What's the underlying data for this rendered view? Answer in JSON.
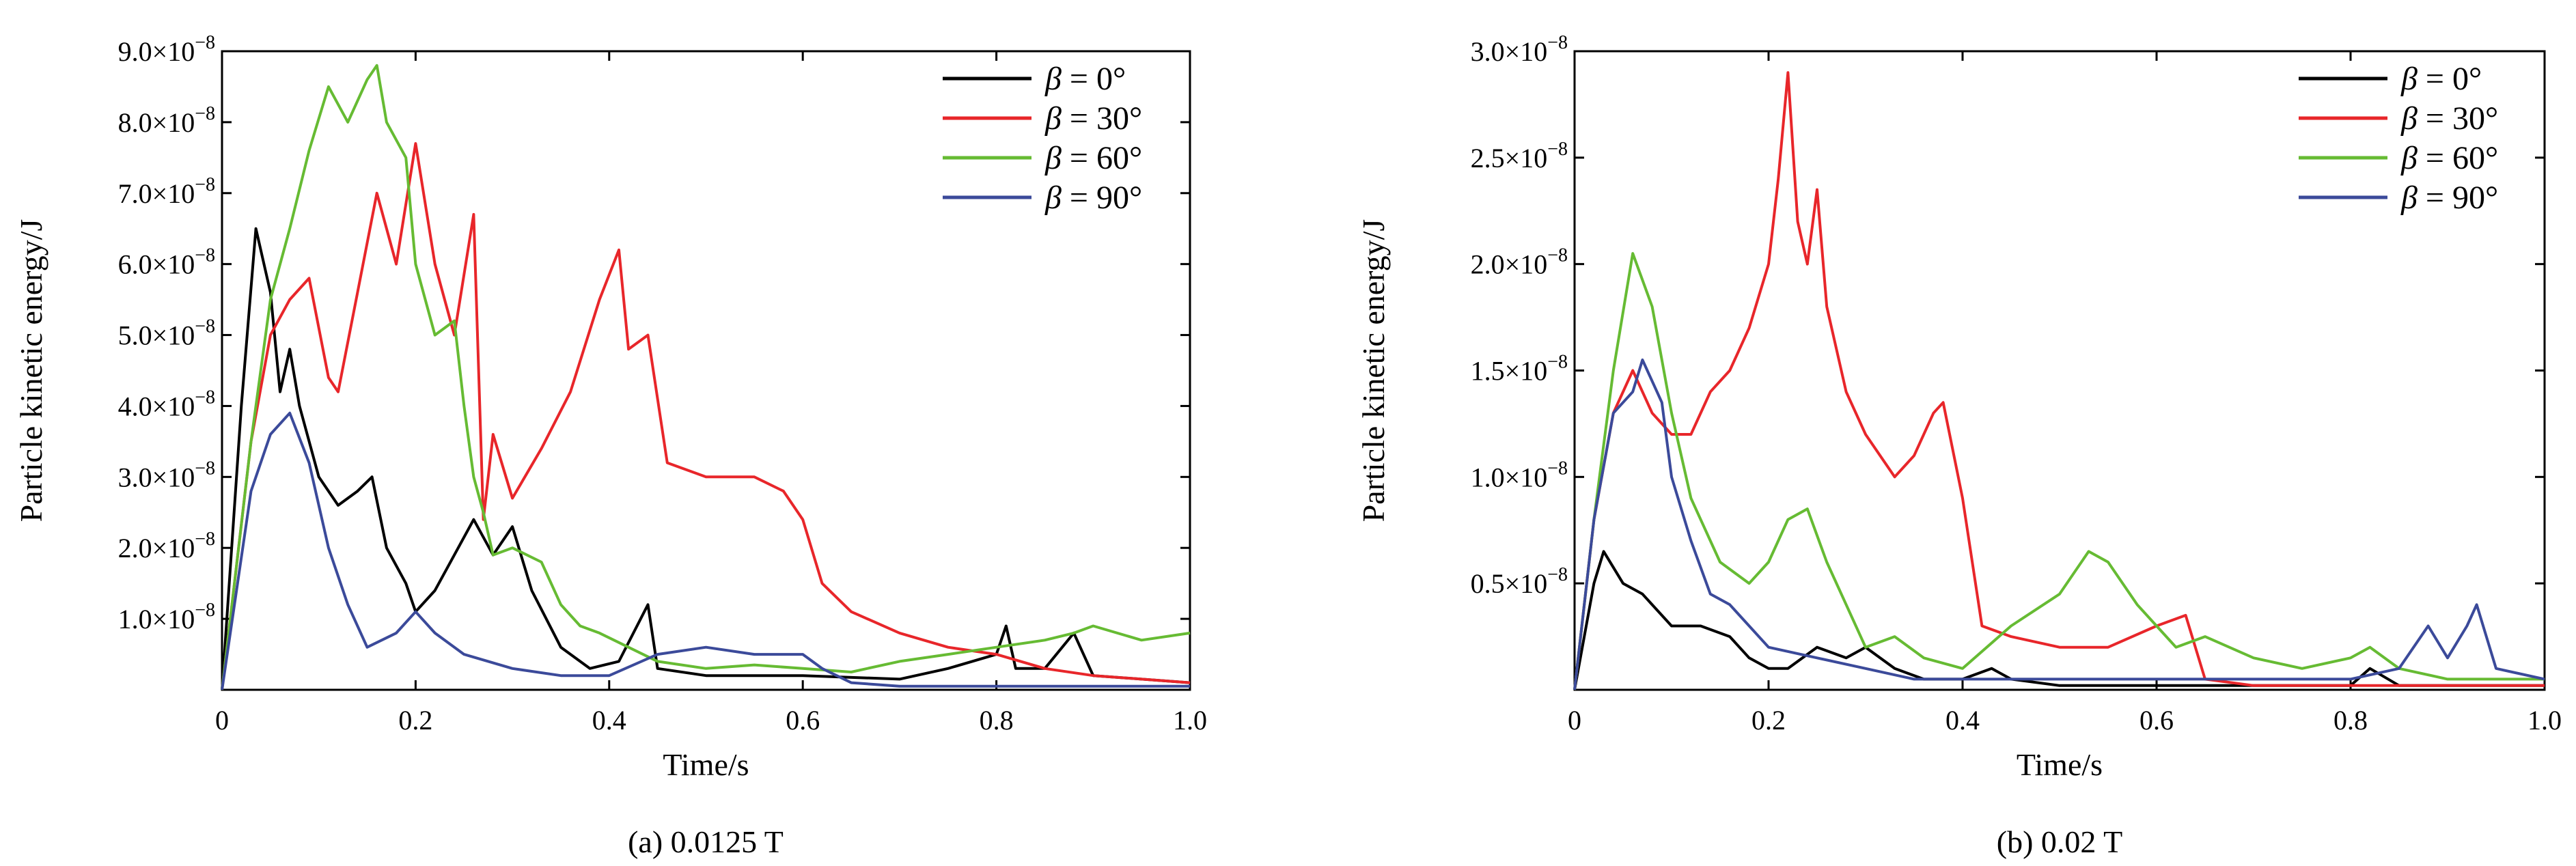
{
  "chart_data": [
    {
      "type": "line",
      "caption": "(a) 0.0125 T",
      "xlabel": "Time/s",
      "ylabel": "Particle kinetic energy/J",
      "xlim": [
        0,
        1.0
      ],
      "ylim": [
        0,
        9e-08
      ],
      "xticks": [
        "0",
        "0.2",
        "0.4",
        "0.6",
        "0.8",
        "1.0"
      ],
      "xtick_values": [
        0,
        0.2,
        0.4,
        0.6,
        0.8,
        1.0
      ],
      "yticks": [
        {
          "mant": "1.0",
          "value": 1e-08
        },
        {
          "mant": "2.0",
          "value": 2e-08
        },
        {
          "mant": "3.0",
          "value": 3e-08
        },
        {
          "mant": "4.0",
          "value": 4e-08
        },
        {
          "mant": "5.0",
          "value": 5e-08
        },
        {
          "mant": "6.0",
          "value": 6e-08
        },
        {
          "mant": "7.0",
          "value": 7e-08
        },
        {
          "mant": "8.0",
          "value": 8e-08
        },
        {
          "mant": "9.0",
          "value": 9e-08
        }
      ],
      "ytick_suffix": "×10",
      "ytick_exp": "−8",
      "legend_position": "top-right",
      "series": [
        {
          "name_sym": "β",
          "name_rest": " = 0°",
          "color": "#000000",
          "x": [
            0,
            0.02,
            0.035,
            0.05,
            0.06,
            0.07,
            0.08,
            0.1,
            0.12,
            0.14,
            0.155,
            0.17,
            0.19,
            0.2,
            0.22,
            0.24,
            0.26,
            0.28,
            0.3,
            0.32,
            0.35,
            0.38,
            0.41,
            0.44,
            0.45,
            0.5,
            0.6,
            0.7,
            0.75,
            0.8,
            0.81,
            0.82,
            0.85,
            0.88,
            0.9,
            1.0
          ],
          "y": [
            0,
            4e-08,
            6.5e-08,
            5.6e-08,
            4.2e-08,
            4.8e-08,
            4e-08,
            3e-08,
            2.6e-08,
            2.8e-08,
            3e-08,
            2e-08,
            1.5e-08,
            1.1e-08,
            1.4e-08,
            1.9e-08,
            2.4e-08,
            1.9e-08,
            2.3e-08,
            1.4e-08,
            6e-09,
            3e-09,
            4e-09,
            1.2e-08,
            3e-09,
            2e-09,
            2e-09,
            1.5e-09,
            3e-09,
            5e-09,
            9e-09,
            3e-09,
            3e-09,
            8e-09,
            2e-09,
            1e-09
          ]
        },
        {
          "name_sym": "β",
          "name_rest": " = 30°",
          "color": "#e8262a",
          "x": [
            0,
            0.03,
            0.05,
            0.07,
            0.09,
            0.11,
            0.12,
            0.14,
            0.16,
            0.18,
            0.2,
            0.22,
            0.24,
            0.26,
            0.27,
            0.28,
            0.3,
            0.33,
            0.36,
            0.39,
            0.41,
            0.42,
            0.44,
            0.46,
            0.5,
            0.55,
            0.58,
            0.6,
            0.62,
            0.65,
            0.7,
            0.75,
            0.8,
            0.85,
            0.9,
            1.0
          ],
          "y": [
            0,
            3.5e-08,
            5e-08,
            5.5e-08,
            5.8e-08,
            4.4e-08,
            4.2e-08,
            5.6e-08,
            7e-08,
            6e-08,
            7.7e-08,
            6e-08,
            5e-08,
            6.7e-08,
            2.4e-08,
            3.6e-08,
            2.7e-08,
            3.4e-08,
            4.2e-08,
            5.5e-08,
            6.2e-08,
            4.8e-08,
            5e-08,
            3.2e-08,
            3e-08,
            3e-08,
            2.8e-08,
            2.4e-08,
            1.5e-08,
            1.1e-08,
            8e-09,
            6e-09,
            5e-09,
            3e-09,
            2e-09,
            1e-09
          ]
        },
        {
          "name_sym": "β",
          "name_rest": " = 60°",
          "color": "#66bb33",
          "x": [
            0,
            0.03,
            0.05,
            0.07,
            0.09,
            0.11,
            0.13,
            0.15,
            0.16,
            0.17,
            0.19,
            0.2,
            0.22,
            0.24,
            0.25,
            0.26,
            0.27,
            0.28,
            0.3,
            0.33,
            0.35,
            0.37,
            0.39,
            0.42,
            0.45,
            0.5,
            0.55,
            0.6,
            0.65,
            0.7,
            0.75,
            0.8,
            0.85,
            0.88,
            0.9,
            0.95,
            1.0
          ],
          "y": [
            0,
            3.5e-08,
            5.5e-08,
            6.5e-08,
            7.6e-08,
            8.5e-08,
            8e-08,
            8.6e-08,
            8.8e-08,
            8e-08,
            7.5e-08,
            6e-08,
            5e-08,
            5.2e-08,
            4e-08,
            3e-08,
            2.5e-08,
            1.9e-08,
            2e-08,
            1.8e-08,
            1.2e-08,
            9e-09,
            8e-09,
            6e-09,
            4e-09,
            3e-09,
            3.5e-09,
            3e-09,
            2.5e-09,
            4e-09,
            5e-09,
            6e-09,
            7e-09,
            8e-09,
            9e-09,
            7e-09,
            8e-09
          ]
        },
        {
          "name_sym": "β",
          "name_rest": " = 90°",
          "color": "#3b4a9a",
          "x": [
            0,
            0.03,
            0.05,
            0.07,
            0.09,
            0.11,
            0.13,
            0.15,
            0.18,
            0.2,
            0.22,
            0.25,
            0.3,
            0.35,
            0.4,
            0.45,
            0.5,
            0.55,
            0.6,
            0.62,
            0.65,
            0.7,
            0.8,
            0.9,
            1.0
          ],
          "y": [
            0,
            2.8e-08,
            3.6e-08,
            3.9e-08,
            3.2e-08,
            2e-08,
            1.2e-08,
            6e-09,
            8e-09,
            1.1e-08,
            8e-09,
            5e-09,
            3e-09,
            2e-09,
            2e-09,
            5e-09,
            6e-09,
            5e-09,
            5e-09,
            3e-09,
            1e-09,
            5e-10,
            5e-10,
            5e-10,
            5e-10
          ]
        }
      ]
    },
    {
      "type": "line",
      "caption": "(b) 0.02 T",
      "xlabel": "Time/s",
      "ylabel": "Particle kinetic energy/J",
      "xlim": [
        0,
        1.0
      ],
      "ylim": [
        0,
        3e-08
      ],
      "xticks": [
        "0",
        "0.2",
        "0.4",
        "0.6",
        "0.8",
        "1.0"
      ],
      "xtick_values": [
        0,
        0.2,
        0.4,
        0.6,
        0.8,
        1.0
      ],
      "yticks": [
        {
          "mant": "0.5",
          "value": 5e-09
        },
        {
          "mant": "1.0",
          "value": 1e-08
        },
        {
          "mant": "1.5",
          "value": 1.5e-08
        },
        {
          "mant": "2.0",
          "value": 2e-08
        },
        {
          "mant": "2.5",
          "value": 2.5e-08
        },
        {
          "mant": "3.0",
          "value": 3e-08
        }
      ],
      "ytick_suffix": "×10",
      "ytick_exp": "−8",
      "legend_position": "top-right",
      "series": [
        {
          "name_sym": "β",
          "name_rest": " = 0°",
          "color": "#000000",
          "x": [
            0,
            0.02,
            0.03,
            0.05,
            0.07,
            0.1,
            0.13,
            0.16,
            0.18,
            0.2,
            0.22,
            0.25,
            0.28,
            0.3,
            0.33,
            0.36,
            0.4,
            0.43,
            0.45,
            0.5,
            0.6,
            0.7,
            0.8,
            0.82,
            0.85,
            0.9,
            1.0
          ],
          "y": [
            0,
            5e-09,
            6.5e-09,
            5e-09,
            4.5e-09,
            3e-09,
            3e-09,
            2.5e-09,
            1.5e-09,
            1e-09,
            1e-09,
            2e-09,
            1.5e-09,
            2e-09,
            1e-09,
            5e-10,
            5e-10,
            1e-09,
            5e-10,
            2e-10,
            2e-10,
            2e-10,
            2e-10,
            1e-09,
            2e-10,
            2e-10,
            2e-10
          ]
        },
        {
          "name_sym": "β",
          "name_rest": " = 30°",
          "color": "#e8262a",
          "x": [
            0,
            0.02,
            0.04,
            0.06,
            0.08,
            0.1,
            0.12,
            0.14,
            0.16,
            0.18,
            0.2,
            0.21,
            0.22,
            0.23,
            0.24,
            0.25,
            0.26,
            0.28,
            0.3,
            0.33,
            0.35,
            0.37,
            0.38,
            0.4,
            0.42,
            0.45,
            0.5,
            0.55,
            0.6,
            0.63,
            0.65,
            0.7,
            0.75,
            0.8,
            0.85,
            1.0
          ],
          "y": [
            0,
            8e-09,
            1.3e-08,
            1.5e-08,
            1.3e-08,
            1.2e-08,
            1.2e-08,
            1.4e-08,
            1.5e-08,
            1.7e-08,
            2e-08,
            2.4e-08,
            2.9e-08,
            2.2e-08,
            2e-08,
            2.35e-08,
            1.8e-08,
            1.4e-08,
            1.2e-08,
            1e-08,
            1.1e-08,
            1.3e-08,
            1.35e-08,
            9e-09,
            3e-09,
            2.5e-09,
            2e-09,
            2e-09,
            3e-09,
            3.5e-09,
            5e-10,
            2e-10,
            2e-10,
            2e-10,
            2e-10,
            2e-10
          ]
        },
        {
          "name_sym": "β",
          "name_rest": " = 60°",
          "color": "#66bb33",
          "x": [
            0,
            0.02,
            0.04,
            0.06,
            0.08,
            0.1,
            0.12,
            0.15,
            0.18,
            0.2,
            0.22,
            0.24,
            0.26,
            0.28,
            0.3,
            0.33,
            0.36,
            0.4,
            0.45,
            0.5,
            0.53,
            0.55,
            0.58,
            0.6,
            0.62,
            0.65,
            0.7,
            0.75,
            0.8,
            0.82,
            0.85,
            0.9,
            0.95,
            1.0
          ],
          "y": [
            0,
            8e-09,
            1.5e-08,
            2.05e-08,
            1.8e-08,
            1.3e-08,
            9e-09,
            6e-09,
            5e-09,
            6e-09,
            8e-09,
            8.5e-09,
            6e-09,
            4e-09,
            2e-09,
            2.5e-09,
            1.5e-09,
            1e-09,
            3e-09,
            4.5e-09,
            6.5e-09,
            6e-09,
            4e-09,
            3e-09,
            2e-09,
            2.5e-09,
            1.5e-09,
            1e-09,
            1.5e-09,
            2e-09,
            1e-09,
            5e-10,
            5e-10,
            5e-10
          ]
        },
        {
          "name_sym": "β",
          "name_rest": " = 90°",
          "color": "#3b4a9a",
          "x": [
            0,
            0.02,
            0.04,
            0.06,
            0.07,
            0.09,
            0.1,
            0.12,
            0.14,
            0.16,
            0.2,
            0.25,
            0.3,
            0.35,
            0.4,
            0.45,
            0.5,
            0.6,
            0.7,
            0.8,
            0.85,
            0.88,
            0.9,
            0.92,
            0.93,
            0.95,
            1.0
          ],
          "y": [
            0,
            8e-09,
            1.3e-08,
            1.4e-08,
            1.55e-08,
            1.35e-08,
            1e-08,
            7e-09,
            4.5e-09,
            4e-09,
            2e-09,
            1.5e-09,
            1e-09,
            5e-10,
            5e-10,
            5e-10,
            5e-10,
            5e-10,
            5e-10,
            5e-10,
            1e-09,
            3e-09,
            1.5e-09,
            3e-09,
            4e-09,
            1e-09,
            5e-10
          ]
        }
      ]
    }
  ]
}
